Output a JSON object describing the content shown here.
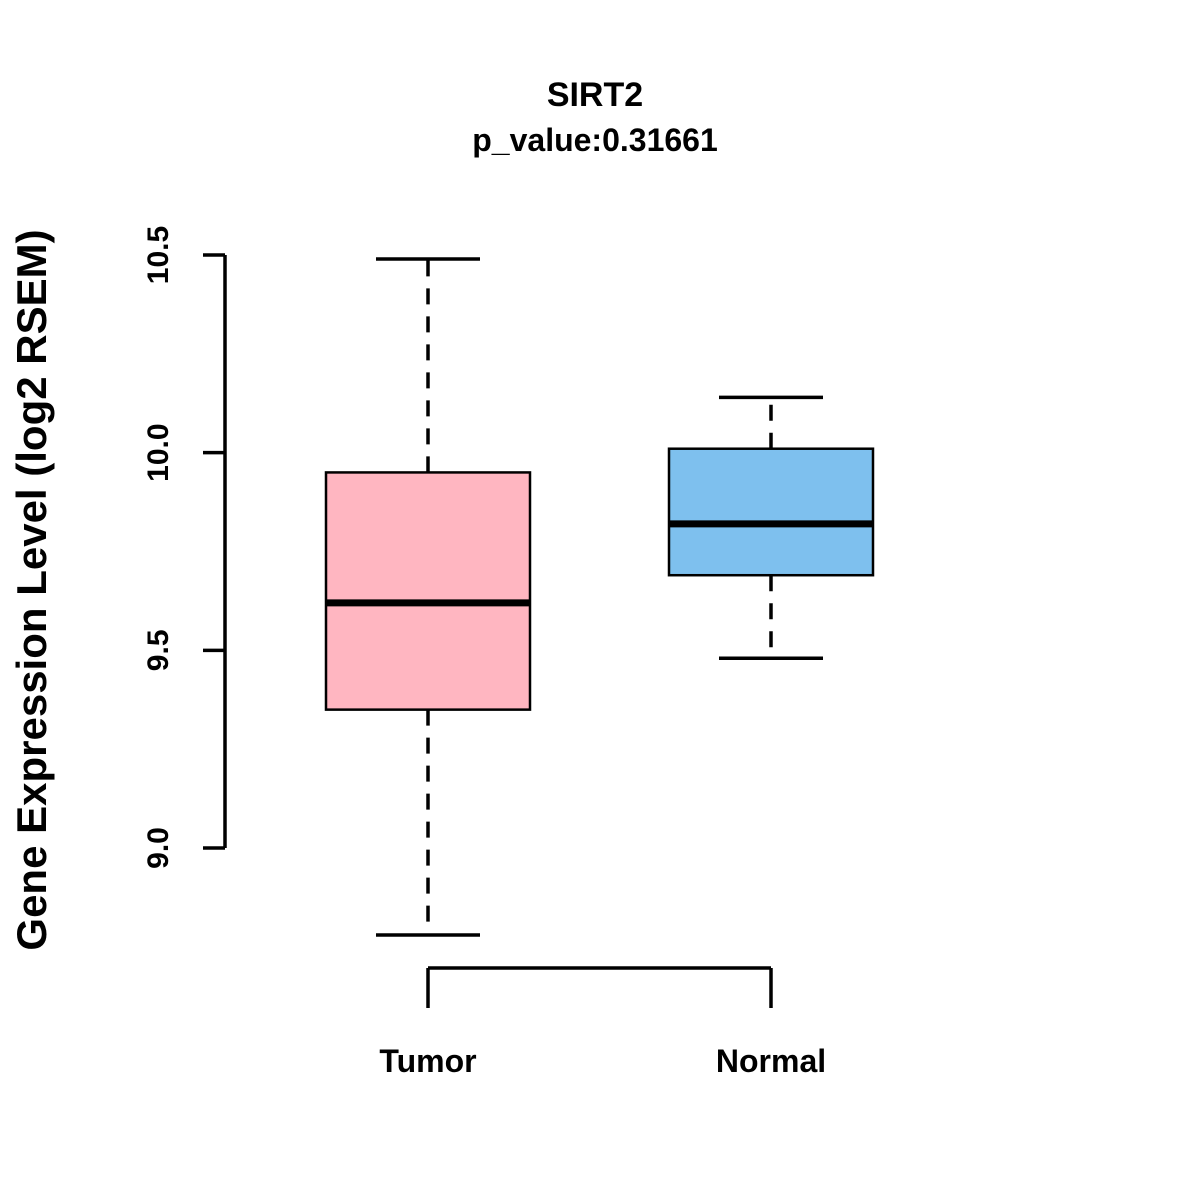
{
  "chart_data": {
    "type": "boxplot",
    "title": "SIRT2",
    "subtitle": "p_value:0.31661",
    "ylabel": "Gene Expression Level (log2 RSEM)",
    "categories": [
      "Tumor",
      "Normal"
    ],
    "series": [
      {
        "name": "Tumor",
        "whisker_low": 8.78,
        "q1": 9.35,
        "median": 9.62,
        "q3": 9.95,
        "whisker_high": 10.49,
        "color": "#FFB6C1"
      },
      {
        "name": "Normal",
        "whisker_low": 9.48,
        "q1": 9.69,
        "median": 9.82,
        "q3": 10.01,
        "whisker_high": 10.14,
        "color": "#7EC0EE"
      }
    ],
    "ylim": [
      9.0,
      10.5
    ],
    "yticks": [
      9.0,
      9.5,
      10.0,
      10.5
    ],
    "ytick_labels": [
      "9.0",
      "9.5",
      "10.0",
      "10.5"
    ],
    "grid": false,
    "legend": "none",
    "axis_color": "#000000"
  }
}
